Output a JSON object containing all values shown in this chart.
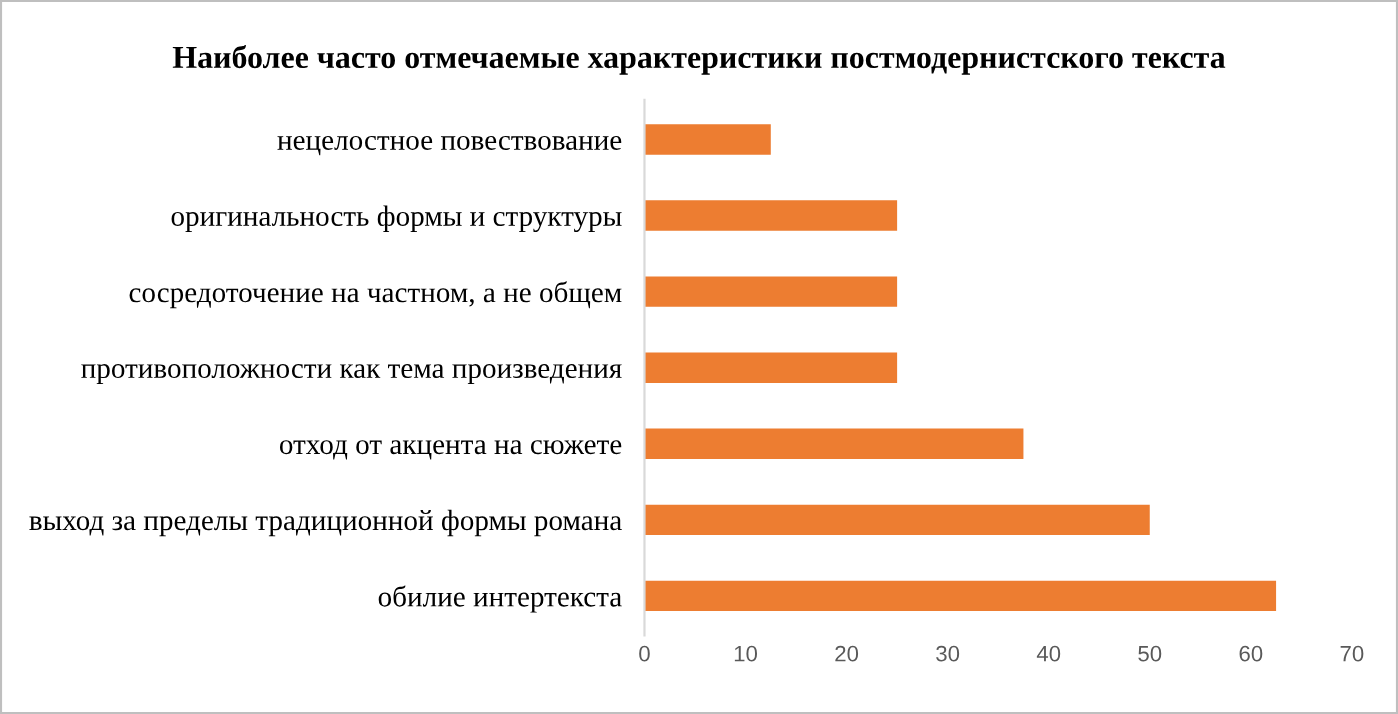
{
  "chart_data": {
    "type": "bar",
    "orientation": "horizontal",
    "title": "Наиболее часто отмечаемые характеристики постмодернистского текста",
    "categories": [
      "нецелостное повествование",
      "оригинальность формы и структуры",
      "сосредоточение на частном, а не общем",
      "противоположности как тема произведения",
      "отход от акцента на сюжете",
      "выход за пределы традиционной формы романа",
      "обилие интертекста"
    ],
    "values": [
      12.5,
      25,
      25,
      25,
      37.5,
      50,
      62.5
    ],
    "color": "#ed7d31",
    "xlim": [
      0,
      70
    ],
    "xticks": [
      0,
      10,
      20,
      30,
      40,
      50,
      60,
      70
    ],
    "grid": false,
    "legend": false
  }
}
